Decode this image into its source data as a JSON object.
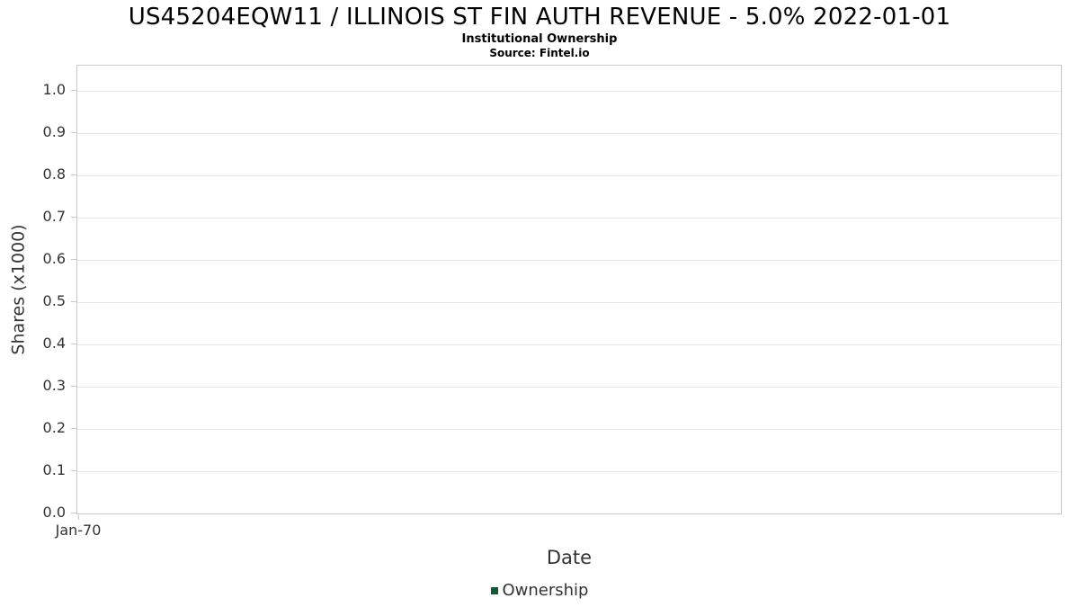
{
  "chart_data": {
    "type": "line",
    "title": "US45204EQW11 / ILLINOIS ST FIN AUTH REVENUE - 5.0% 2022-01-01",
    "subtitle": "Institutional Ownership",
    "source": "Source: Fintel.io",
    "xlabel": "Date",
    "ylabel": "Shares (x1000)",
    "ylim": [
      0.0,
      1.0
    ],
    "ytick_step": 0.1,
    "yticks": [
      "0.0",
      "0.1",
      "0.2",
      "0.3",
      "0.4",
      "0.5",
      "0.6",
      "0.7",
      "0.8",
      "0.9",
      "1.0"
    ],
    "xticks": [
      "Jan-70"
    ],
    "grid": true,
    "legend_position": "bottom",
    "series": [
      {
        "name": "Ownership",
        "color": "#18563a",
        "x": [],
        "values": []
      }
    ]
  }
}
